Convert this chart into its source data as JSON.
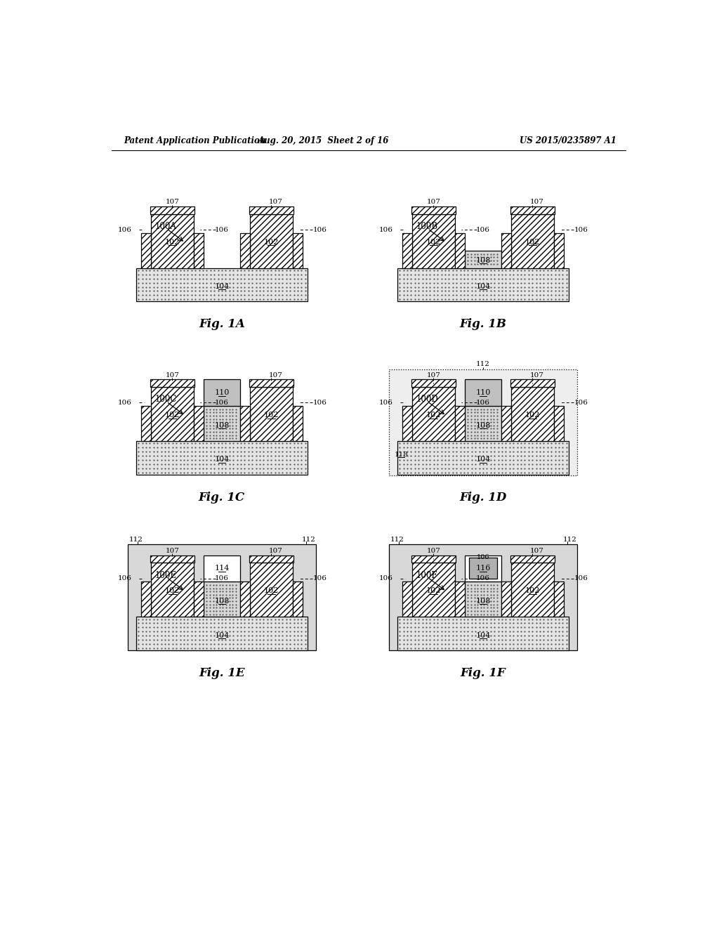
{
  "header_left": "Patent Application Publication",
  "header_center": "Aug. 20, 2015  Sheet 2 of 16",
  "header_right": "US 2015/0235897 A1",
  "bg": "#ffffff",
  "dot_color": "#c8c8c8",
  "hatch_color": "#e0e0e0",
  "gray110": "#c0c0c0",
  "gray116": "#b0b0b0",
  "lgray112": "#d8d8d8",
  "lw_main": 0.9
}
